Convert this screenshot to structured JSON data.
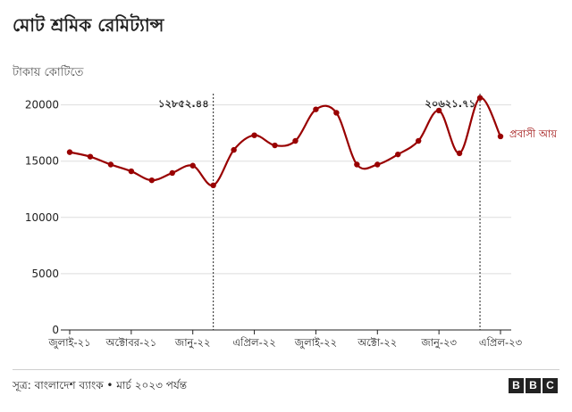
{
  "header": {
    "title": "মোট শ্রমিক রেমিট্যান্স",
    "subtitle": "টাকায় কোটিতে"
  },
  "footer": {
    "source": "সূত্র: বাংলাদেশ ব্যাংক • মার্চ ২০২৩ পর্যন্ত",
    "logo_letters": [
      "B",
      "B",
      "C"
    ]
  },
  "colors": {
    "series": "#990000",
    "axis": "#222222",
    "grid": "#dddddd",
    "annotation_line": "#222222"
  },
  "chart_data": {
    "type": "line",
    "title": "মোট শ্রমিক রেমিট্যান্স",
    "ylabel": "টাকায় কোটিতে",
    "xlabel": "",
    "ylim": [
      0,
      21000
    ],
    "grid": true,
    "y_ticks": [
      0,
      5000,
      10000,
      15000,
      20000
    ],
    "y_tick_labels": [
      "0",
      "5000",
      "10000",
      "15000",
      "20000"
    ],
    "x": [
      "2021-07",
      "2021-08",
      "2021-09",
      "2021-10",
      "2021-11",
      "2021-12",
      "2022-01",
      "2022-02",
      "2022-03",
      "2022-04",
      "2022-05",
      "2022-06",
      "2022-07",
      "2022-08",
      "2022-09",
      "2022-10",
      "2022-11",
      "2022-12",
      "2023-01",
      "2023-02",
      "2023-03",
      "2023-04"
    ],
    "x_tick_labels": [
      {
        "at": "2021-07",
        "label": "জুলাই-২১"
      },
      {
        "at": "2021-10",
        "label": "অক্টোবর-২১"
      },
      {
        "at": "2022-01",
        "label": "জানু-২২"
      },
      {
        "at": "2022-04",
        "label": "এপ্রিল-২২"
      },
      {
        "at": "2022-07",
        "label": "জুলাই-২২"
      },
      {
        "at": "2022-10",
        "label": "অক্টো-২২"
      },
      {
        "at": "2023-01",
        "label": "জানু-২৩"
      },
      {
        "at": "2023-04",
        "label": "এপ্রিল-২৩"
      }
    ],
    "series": [
      {
        "name": "প্রবাসী আয়",
        "values": [
          15800,
          15400,
          14700,
          14100,
          13300,
          13950,
          14600,
          12852.44,
          16000,
          17300,
          16400,
          16800,
          19600,
          19300,
          14700,
          14700,
          15600,
          16800,
          19500,
          15700,
          20621.71,
          17200
        ]
      }
    ],
    "annotations": [
      {
        "x": "2022-02",
        "label": "১২৮৫২.৪৪"
      },
      {
        "x": "2023-03",
        "label": "২০৬২১.৭১"
      }
    ],
    "legend": "right-of-line-end"
  }
}
